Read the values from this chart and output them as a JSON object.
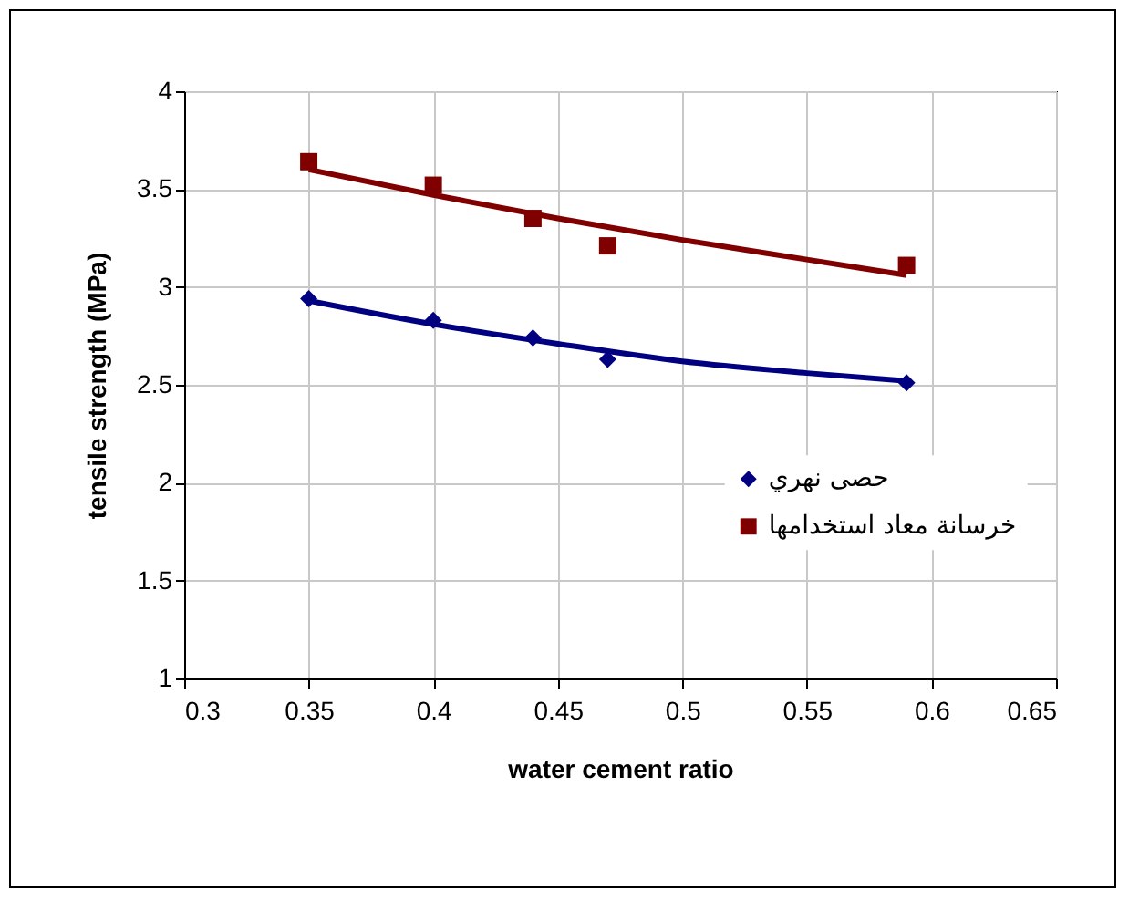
{
  "chart_data": {
    "type": "scatter",
    "xlabel": "water cement ratio",
    "ylabel": "tensile strength (MPa)",
    "xlim": [
      0.3,
      0.65
    ],
    "xticks": [
      0.3,
      0.35,
      0.4,
      0.45,
      0.5,
      0.55,
      0.6,
      0.65
    ],
    "ylim": [
      1,
      4
    ],
    "yticks": [
      1,
      1.5,
      2,
      2.5,
      3,
      3.5,
      4
    ],
    "grid": true,
    "legend": "right",
    "series": [
      {
        "name": "حصى نهري",
        "marker": "diamond",
        "color": "#000080",
        "x": [
          0.35,
          0.4,
          0.44,
          0.47,
          0.59
        ],
        "values": [
          2.94,
          2.83,
          2.74,
          2.63,
          2.51
        ]
      },
      {
        "name": "خرسانة معاد استخدامها",
        "marker": "square",
        "color": "#800000",
        "x": [
          0.35,
          0.4,
          0.44,
          0.47,
          0.59
        ],
        "values": [
          3.64,
          3.52,
          3.35,
          3.21,
          3.11
        ]
      },
      {
        "type": "line",
        "color": "#000080",
        "x": [
          0.35,
          0.4,
          0.45,
          0.5,
          0.55,
          0.59
        ],
        "values": [
          2.93,
          2.81,
          2.71,
          2.62,
          2.56,
          2.52
        ]
      },
      {
        "type": "line",
        "color": "#800000",
        "x": [
          0.35,
          0.4,
          0.45,
          0.5,
          0.55,
          0.59
        ],
        "values": [
          3.6,
          3.47,
          3.35,
          3.24,
          3.14,
          3.06
        ]
      }
    ]
  }
}
